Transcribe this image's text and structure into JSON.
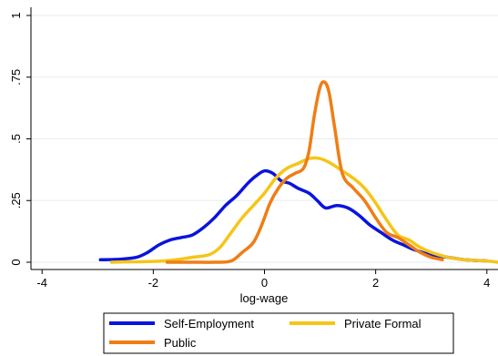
{
  "chart_data": {
    "type": "line",
    "title": "",
    "xlabel": "log-wage",
    "ylabel": "",
    "xlim": [
      -4.2,
      4.2
    ],
    "ylim": [
      0,
      1
    ],
    "x_ticks": [
      {
        "value": -4,
        "label": "-4"
      },
      {
        "value": -2,
        "label": "-2"
      },
      {
        "value": 0,
        "label": "0"
      },
      {
        "value": 2,
        "label": "2"
      },
      {
        "value": 4,
        "label": "4"
      }
    ],
    "y_ticks": [
      {
        "value": 0,
        "label": "0"
      },
      {
        "value": 0.25,
        "label": ".25"
      },
      {
        "value": 0.5,
        "label": ".5"
      },
      {
        "value": 0.75,
        "label": ".75"
      },
      {
        "value": 1,
        "label": "1"
      }
    ],
    "grid": "horizontal",
    "legend_position": "bottom",
    "series": [
      {
        "name": "Self-Employment",
        "color": "#0a14dc",
        "points": [
          [
            -2.95,
            0.01
          ],
          [
            -2.6,
            0.012
          ],
          [
            -2.3,
            0.02
          ],
          [
            -2.1,
            0.04
          ],
          [
            -1.9,
            0.07
          ],
          [
            -1.7,
            0.09
          ],
          [
            -1.5,
            0.1
          ],
          [
            -1.3,
            0.11
          ],
          [
            -1.1,
            0.14
          ],
          [
            -0.9,
            0.18
          ],
          [
            -0.7,
            0.23
          ],
          [
            -0.5,
            0.27
          ],
          [
            -0.3,
            0.32
          ],
          [
            -0.15,
            0.35
          ],
          [
            0.0,
            0.37
          ],
          [
            0.15,
            0.36
          ],
          [
            0.3,
            0.33
          ],
          [
            0.45,
            0.32
          ],
          [
            0.6,
            0.3
          ],
          [
            0.8,
            0.28
          ],
          [
            0.95,
            0.25
          ],
          [
            1.1,
            0.22
          ],
          [
            1.3,
            0.23
          ],
          [
            1.5,
            0.22
          ],
          [
            1.7,
            0.19
          ],
          [
            1.9,
            0.15
          ],
          [
            2.1,
            0.12
          ],
          [
            2.3,
            0.09
          ],
          [
            2.5,
            0.07
          ],
          [
            2.7,
            0.05
          ],
          [
            3.0,
            0.03
          ],
          [
            3.3,
            0.02
          ],
          [
            3.6,
            0.01
          ],
          [
            4.0,
            0.005
          ]
        ]
      },
      {
        "name": "Private Formal",
        "color": "#f5c518",
        "points": [
          [
            -2.75,
            0.0
          ],
          [
            -2.3,
            0.002
          ],
          [
            -1.9,
            0.004
          ],
          [
            -1.6,
            0.01
          ],
          [
            -1.3,
            0.02
          ],
          [
            -1.0,
            0.03
          ],
          [
            -0.8,
            0.06
          ],
          [
            -0.6,
            0.12
          ],
          [
            -0.4,
            0.18
          ],
          [
            -0.2,
            0.23
          ],
          [
            0.0,
            0.28
          ],
          [
            0.2,
            0.34
          ],
          [
            0.4,
            0.38
          ],
          [
            0.6,
            0.4
          ],
          [
            0.8,
            0.42
          ],
          [
            1.0,
            0.42
          ],
          [
            1.2,
            0.4
          ],
          [
            1.4,
            0.37
          ],
          [
            1.6,
            0.34
          ],
          [
            1.8,
            0.3
          ],
          [
            2.0,
            0.24
          ],
          [
            2.2,
            0.17
          ],
          [
            2.4,
            0.11
          ],
          [
            2.6,
            0.09
          ],
          [
            2.8,
            0.06
          ],
          [
            3.0,
            0.04
          ],
          [
            3.3,
            0.02
          ],
          [
            3.6,
            0.01
          ],
          [
            4.0,
            0.005
          ],
          [
            4.2,
            0.0
          ]
        ]
      },
      {
        "name": "Public",
        "color": "#f07d14",
        "points": [
          [
            -1.75,
            0.0
          ],
          [
            -1.3,
            0.0
          ],
          [
            -0.9,
            0.0
          ],
          [
            -0.6,
            0.005
          ],
          [
            -0.4,
            0.04
          ],
          [
            -0.2,
            0.08
          ],
          [
            -0.05,
            0.15
          ],
          [
            0.1,
            0.24
          ],
          [
            0.25,
            0.3
          ],
          [
            0.4,
            0.34
          ],
          [
            0.55,
            0.36
          ],
          [
            0.7,
            0.38
          ],
          [
            0.8,
            0.45
          ],
          [
            0.9,
            0.6
          ],
          [
            1.0,
            0.71
          ],
          [
            1.08,
            0.73
          ],
          [
            1.16,
            0.69
          ],
          [
            1.26,
            0.55
          ],
          [
            1.4,
            0.36
          ],
          [
            1.6,
            0.3
          ],
          [
            1.8,
            0.25
          ],
          [
            2.0,
            0.18
          ],
          [
            2.2,
            0.12
          ],
          [
            2.4,
            0.1
          ],
          [
            2.6,
            0.07
          ],
          [
            2.8,
            0.04
          ],
          [
            3.0,
            0.02
          ],
          [
            3.2,
            0.01
          ]
        ]
      }
    ]
  }
}
